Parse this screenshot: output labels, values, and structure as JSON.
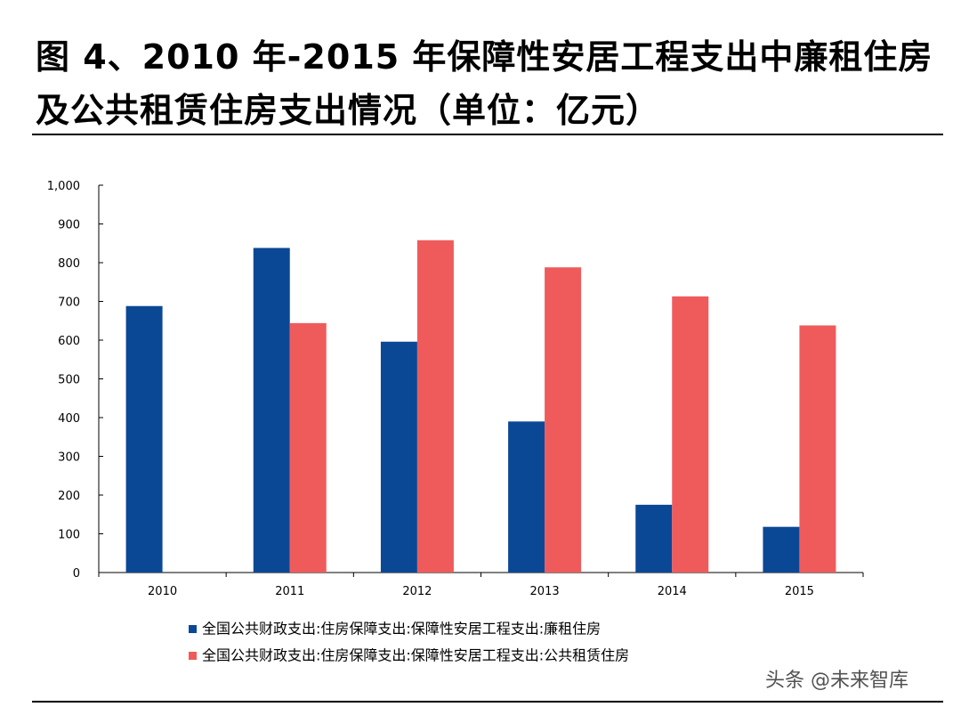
{
  "title": "图 4、2010 年-2015 年保障性安居工程支出中廉租住房及公共租赁住房支出情况（单位：亿元）",
  "watermark": "头条 @未来智库",
  "chart_data": {
    "type": "bar",
    "categories": [
      "2010",
      "2011",
      "2012",
      "2013",
      "2014",
      "2015"
    ],
    "series": [
      {
        "name": "全国公共财政支出:住房保障支出:保障性安居工程支出:廉租住房",
        "color": "#0a4896",
        "values": [
          688,
          838,
          596,
          390,
          175,
          118
        ]
      },
      {
        "name": "全国公共财政支出:住房保障支出:保障性安居工程支出:公共租赁住房",
        "color": "#ef5b5b",
        "values": [
          null,
          644,
          858,
          788,
          713,
          638
        ]
      }
    ],
    "yticks": [
      "0",
      "100",
      "200",
      "300",
      "400",
      "500",
      "600",
      "700",
      "800",
      "900",
      "1,000"
    ],
    "ylim": [
      0,
      1000
    ],
    "legend_position": "bottom-left",
    "grid": false
  }
}
